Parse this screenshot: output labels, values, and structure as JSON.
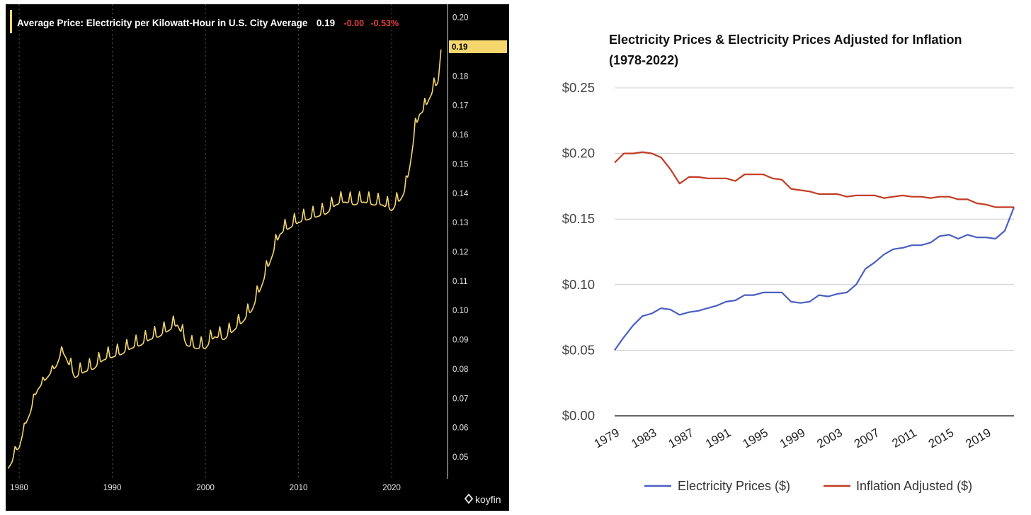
{
  "chart_data": [
    {
      "type": "line",
      "title": "Average Price: Electricity per Kilowatt-Hour in U.S. City Average",
      "last_value": "0.19",
      "change": "-0.00",
      "change_pct": "-0.53%",
      "last_value_tag": "0.19",
      "watermark": "koyfin",
      "x_ticks": [
        "1980",
        "1990",
        "2000",
        "2010",
        "2020"
      ],
      "y_ticks": [
        "0.20",
        "0.19",
        "0.18",
        "0.17",
        "0.16",
        "0.15",
        "0.14",
        "0.13",
        "0.12",
        "0.11",
        "0.10",
        "0.09",
        "0.08",
        "0.07",
        "0.06",
        "0.05"
      ],
      "xlim": [
        1978.7,
        2026.0
      ],
      "ylim": [
        0.0425,
        0.2045
      ],
      "grid": true,
      "colors": {
        "background": "#000000",
        "line": "#f5d76e",
        "grid": "#555555",
        "negative": "#e5423b"
      },
      "series": [
        {
          "x": [
            1978.8,
            1979.2,
            1979.6,
            1980.0,
            1980.4,
            1980.8,
            1981.2,
            1981.6,
            1982.0,
            1982.5,
            1983.0,
            1983.5,
            1984.0,
            1984.6,
            1985.0,
            1985.5,
            1986.0,
            1986.5,
            1987.0,
            1988.0,
            1989.0,
            1990.0,
            1991.0,
            1992.0,
            1993.0,
            1994.0,
            1995.0,
            1996.0,
            1997.0,
            1998.0,
            1999.0,
            2000.0,
            2001.0,
            2002.0,
            2003.0,
            2004.0,
            2005.0,
            2006.0,
            2007.0,
            2008.0,
            2009.0,
            2010.0,
            2011.0,
            2012.0,
            2013.0,
            2014.0,
            2015.0,
            2016.0,
            2017.0,
            2018.0,
            2019.0,
            2020.0,
            2020.5,
            2021.0,
            2021.5,
            2022.0,
            2022.5,
            2023.0,
            2023.5,
            2024.0,
            2024.5,
            2025.0,
            2025.3
          ],
          "values": [
            0.046,
            0.048,
            0.052,
            0.053,
            0.058,
            0.062,
            0.065,
            0.07,
            0.073,
            0.075,
            0.077,
            0.079,
            0.081,
            0.086,
            0.084,
            0.08,
            0.077,
            0.078,
            0.079,
            0.08,
            0.083,
            0.084,
            0.085,
            0.087,
            0.088,
            0.09,
            0.091,
            0.093,
            0.095,
            0.088,
            0.087,
            0.087,
            0.091,
            0.09,
            0.093,
            0.096,
            0.1,
            0.108,
            0.117,
            0.126,
            0.128,
            0.13,
            0.131,
            0.132,
            0.133,
            0.136,
            0.137,
            0.136,
            0.137,
            0.136,
            0.136,
            0.134,
            0.136,
            0.138,
            0.141,
            0.15,
            0.161,
            0.167,
            0.168,
            0.172,
            0.175,
            0.178,
            0.189
          ],
          "seasonal_amplitude": 0.004
        }
      ]
    },
    {
      "type": "line",
      "title": "Electricity Prices & Electricity Prices Adjusted for Inflation (1978-2022)",
      "title_lines": [
        "Electricity Prices & Electricity Prices Adjusted for Inflation",
        "(1978-2022)"
      ],
      "categories": [
        "1979",
        "1980",
        "1981",
        "1982",
        "1983",
        "1984",
        "1985",
        "1986",
        "1987",
        "1988",
        "1989",
        "1990",
        "1991",
        "1992",
        "1993",
        "1994",
        "1995",
        "1996",
        "1997",
        "1998",
        "1999",
        "2000",
        "2001",
        "2002",
        "2003",
        "2004",
        "2005",
        "2006",
        "2007",
        "2008",
        "2009",
        "2010",
        "2011",
        "2012",
        "2013",
        "2014",
        "2015",
        "2016",
        "2017",
        "2018",
        "2019",
        "2020",
        "2021",
        "2022"
      ],
      "x_tick_labels": [
        "1979",
        "1983",
        "1987",
        "1991",
        "1995",
        "1999",
        "2003",
        "2007",
        "2011",
        "2015",
        "2019"
      ],
      "y_ticks": [
        "$0.00",
        "$0.05",
        "$0.10",
        "$0.15",
        "$0.20",
        "$0.25"
      ],
      "ylim": [
        0,
        0.25
      ],
      "grid": true,
      "legend_position": "bottom",
      "series": [
        {
          "name": "Electricity Prices ($)",
          "color": "#4a5fc1",
          "values": [
            0.05,
            0.06,
            0.069,
            0.076,
            0.078,
            0.082,
            0.081,
            0.077,
            0.079,
            0.08,
            0.082,
            0.084,
            0.087,
            0.088,
            0.092,
            0.092,
            0.094,
            0.094,
            0.094,
            0.087,
            0.086,
            0.087,
            0.092,
            0.091,
            0.093,
            0.094,
            0.1,
            0.112,
            0.117,
            0.123,
            0.127,
            0.128,
            0.13,
            0.13,
            0.132,
            0.137,
            0.138,
            0.135,
            0.138,
            0.136,
            0.136,
            0.135,
            0.141,
            0.159
          ]
        },
        {
          "name": "Inflation Adjusted ($)",
          "color": "#c23b22",
          "values": [
            0.193,
            0.2,
            0.2,
            0.201,
            0.2,
            0.197,
            0.188,
            0.177,
            0.182,
            0.182,
            0.181,
            0.181,
            0.181,
            0.179,
            0.184,
            0.184,
            0.184,
            0.181,
            0.18,
            0.173,
            0.172,
            0.171,
            0.169,
            0.169,
            0.169,
            0.167,
            0.168,
            0.168,
            0.168,
            0.166,
            0.167,
            0.168,
            0.167,
            0.167,
            0.166,
            0.167,
            0.167,
            0.165,
            0.165,
            0.162,
            0.161,
            0.159,
            0.159,
            0.159
          ]
        }
      ]
    }
  ]
}
